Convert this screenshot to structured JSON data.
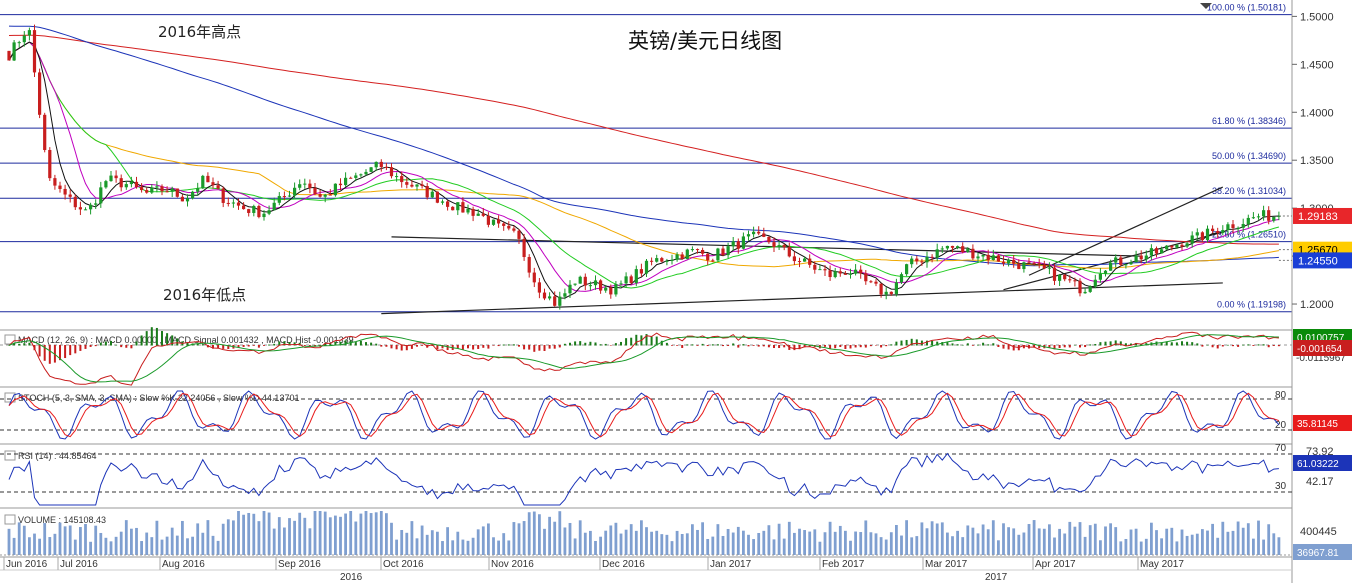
{
  "chart_data": {
    "type": "candlestick",
    "title": "英镑/美元日线图",
    "annotations": {
      "high_label": "2016年高点",
      "low_label": "2016年低点"
    },
    "price_axis": {
      "ylim": [
        1.175,
        1.515
      ],
      "ticks": [
        "1.5000",
        "1.4500",
        "1.4000",
        "1.3500",
        "1.3000",
        "1.2500",
        "1.2000"
      ],
      "tick_values": [
        1.5,
        1.45,
        1.4,
        1.35,
        1.3,
        1.25,
        1.2
      ]
    },
    "fibonacci": [
      {
        "label": "100.00 % (1.50181)",
        "value": 1.50181
      },
      {
        "label": "61.80 % (1.38346)",
        "value": 1.38346
      },
      {
        "label": "50.00 % (1.34690)",
        "value": 1.3469
      },
      {
        "label": "38.20 % (1.31034)",
        "value": 1.31034
      },
      {
        "label": "23.60 % (1.26510)",
        "value": 1.2651
      },
      {
        "label": "0.00 % (1.19198)",
        "value": 1.19198
      }
    ],
    "price_badges": [
      {
        "text": "1.29183",
        "value": 1.29183,
        "color": "#e8262a",
        "text_color": "#ffffff"
      },
      {
        "text": "1.25670",
        "value": 1.2567,
        "color": "#ffcc00",
        "text_color": "#000000"
      },
      {
        "text": "1.24550",
        "value": 1.2455,
        "color": "#1a3fd6",
        "text_color": "#ffffff"
      }
    ],
    "colors": {
      "up": "#1a9a2a",
      "down": "#c81e1e",
      "ma_red": "#d42020",
      "ma_blue": "#1c34b8",
      "ma_orange": "#f0a800",
      "ma_green": "#22cc22",
      "ma_magenta": "#c000c0",
      "ma_black": "#111111",
      "fib_line": "#1c2a9e",
      "stoch_k": "#1c34b8",
      "stoch_d": "#e81c1c",
      "rsi": "#1c34b8",
      "volume": "#7f9fd0"
    },
    "x_axis": {
      "months": [
        "Jun 2016",
        "Jul 2016",
        "Aug 2016",
        "Sep 2016",
        "Oct 2016",
        "Nov 2016",
        "Dec 2016",
        "Jan 2017",
        "Feb 2017",
        "Mar 2017",
        "Apr 2017",
        "May 2017"
      ],
      "years": [
        "2016",
        "2017"
      ]
    },
    "close_anchors": [
      1.46,
      1.49,
      1.33,
      1.31,
      1.295,
      1.33,
      1.325,
      1.315,
      1.32,
      1.31,
      1.33,
      1.31,
      1.3,
      1.295,
      1.31,
      1.33,
      1.31,
      1.325,
      1.335,
      1.345,
      1.33,
      1.32,
      1.31,
      1.3,
      1.295,
      1.28,
      1.27,
      1.22,
      1.2,
      1.225,
      1.22,
      1.215,
      1.23,
      1.245,
      1.25,
      1.255,
      1.25,
      1.26,
      1.27,
      1.265,
      1.25,
      1.24,
      1.23,
      1.235,
      1.22,
      1.21,
      1.24,
      1.25,
      1.26,
      1.255,
      1.25,
      1.245,
      1.24,
      1.235,
      1.225,
      1.215,
      1.24,
      1.245,
      1.25,
      1.255,
      1.265,
      1.27,
      1.28,
      1.285,
      1.292,
      1.29183
    ],
    "panels": {
      "macd": {
        "label": "MACD (12, 26, 9) : MACD 0.00000 , MACD Signal 0.001432 , MACD Hist -0.001339",
        "badges": [
          {
            "text": "0.0100757",
            "color": "#0a8a0a",
            "text_color": "#ffffff"
          },
          {
            "text": "-0.001654",
            "color": "#c81e1e",
            "text_color": "#ffffff"
          }
        ],
        "axis_label": "-0.0115967"
      },
      "stoch": {
        "label": "STOCH (5, 3, SMA, 3, SMA) : Slow %K 22.24056 , Slow %D 44.13701",
        "levels": [
          "80",
          "20"
        ],
        "badges": [
          {
            "text": "35.81145",
            "color": "#e81c1c",
            "text_color": "#ffffff"
          }
        ]
      },
      "rsi": {
        "label": "RSI (14) : 44.85464",
        "levels": [
          "70",
          "30"
        ],
        "axis_labels": [
          "73.92",
          "42.17"
        ],
        "badges": [
          {
            "text": "61.03222",
            "color": "#1c34b8",
            "text_color": "#ffffff"
          }
        ]
      },
      "volume": {
        "label": "VOLUME : 145108.43",
        "axis_label": "400445",
        "badges": [
          {
            "text": "36967.81",
            "color": "#7f9fd0",
            "text_color": "#ffffff"
          }
        ]
      }
    }
  }
}
